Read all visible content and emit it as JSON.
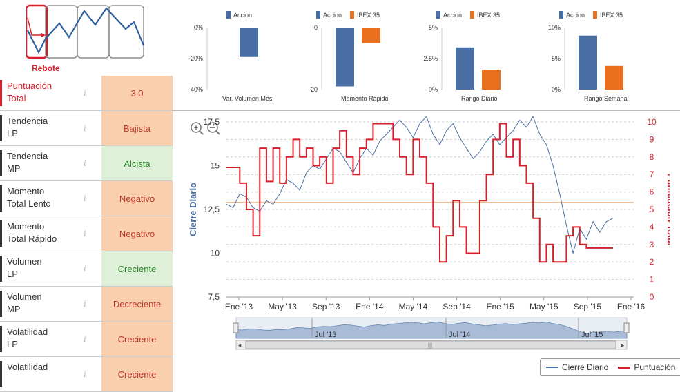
{
  "logo": {
    "label": "Rebote"
  },
  "mini_charts": [
    {
      "legend": [
        "Accion"
      ],
      "caption": "Var. Volumen Mes",
      "ticks": [
        "0%",
        "-20%",
        "-40%"
      ],
      "values": {
        "Accion": -0.19
      }
    },
    {
      "legend": [
        "Accion",
        "IBEX 35"
      ],
      "caption": "Momento Rápido",
      "ticks": [
        "0",
        "-20"
      ],
      "values": {
        "Accion": -19,
        "IBEX 35": -5
      }
    },
    {
      "legend": [
        "Accion",
        "IBEX 35"
      ],
      "caption": "Rango Diario",
      "ticks": [
        "5%",
        "2.5%",
        "0%"
      ],
      "values": {
        "Accion": 0.034,
        "IBEX 35": 0.016
      }
    },
    {
      "legend": [
        "Accion",
        "IBEX 35"
      ],
      "caption": "Rango Semanal",
      "ticks": [
        "10%",
        "5%",
        "0%"
      ],
      "values": {
        "Accion": 0.087,
        "IBEX 35": 0.038
      }
    }
  ],
  "colors": {
    "accion": "#4a6fa5",
    "ibex": "#e8701e",
    "punt": "#d61f2a",
    "cierre": "#4a6fa5"
  },
  "indicators": [
    {
      "label1": "Puntuación",
      "label2": "Total",
      "value": "3,0",
      "tone": "neg"
    },
    {
      "label1": "Tendencia",
      "label2": "LP",
      "value": "Bajista",
      "tone": "neg"
    },
    {
      "label1": "Tendencia",
      "label2": "MP",
      "value": "Alcista",
      "tone": "pos"
    },
    {
      "label1": "Momento",
      "label2": "Total Lento",
      "value": "Negativo",
      "tone": "neg"
    },
    {
      "label1": "Momento",
      "label2": "Total Rápido",
      "value": "Negativo",
      "tone": "neg"
    },
    {
      "label1": "Volumen",
      "label2": "LP",
      "value": "Creciente",
      "tone": "pos"
    },
    {
      "label1": "Volumen",
      "label2": "MP",
      "value": "Decreciente",
      "tone": "neg"
    },
    {
      "label1": "Volatilidad",
      "label2": "LP",
      "value": "Creciente",
      "tone": "neg"
    },
    {
      "label1": "Volatilidad",
      "label2": "",
      "value": "Creciente",
      "tone": "neg"
    }
  ],
  "chart_data": {
    "type": "line",
    "y_left_label": "Cierre Diario",
    "y_right_label": "Puntuacion Total",
    "y_left_ticks": [
      "17,5",
      "15",
      "12,5",
      "10",
      "7,5"
    ],
    "y_left_range": [
      7.5,
      17.5
    ],
    "y_right_ticks": [
      "10",
      "9",
      "8",
      "7",
      "6",
      "5",
      "4",
      "3",
      "2",
      "1",
      "0"
    ],
    "y_right_range": [
      0,
      10
    ],
    "x_ticks": [
      "Ene '13",
      "May '13",
      "Sep '13",
      "Ene '14",
      "May '14",
      "Sep '14",
      "Ene '15",
      "May '15",
      "Sep '15",
      "Ene '16"
    ],
    "navigator_ticks": [
      "Jul '13",
      "Jul '14",
      "Jul '15"
    ],
    "reference_level": 12.9,
    "series": [
      {
        "name": "Cierre Diario",
        "values": [
          12.8,
          12.6,
          13.4,
          13.2,
          12.6,
          12.4,
          13.0,
          12.8,
          13.4,
          14.2,
          14.0,
          13.6,
          14.6,
          15.0,
          14.8,
          15.4,
          16.0,
          15.8,
          15.2,
          14.6,
          15.4,
          16.0,
          15.6,
          16.4,
          16.8,
          17.2,
          17.6,
          17.2,
          16.6,
          17.4,
          17.8,
          16.8,
          16.2,
          17.0,
          17.4,
          16.6,
          16.0,
          15.4,
          15.8,
          16.4,
          16.8,
          16.2,
          16.6,
          17.0,
          17.6,
          17.2,
          17.8,
          16.8,
          16.2,
          15.0,
          13.4,
          11.6,
          10.0,
          11.4,
          10.8,
          11.8,
          11.2,
          11.8,
          12.0
        ]
      },
      {
        "name": "Puntuación",
        "values": [
          7.4,
          7.4,
          6.5,
          5.0,
          3.5,
          8.5,
          6.6,
          8.5,
          6.5,
          8.0,
          9.0,
          8.0,
          8.5,
          7.5,
          8.0,
          6.5,
          8.5,
          9.5,
          8.0,
          7.0,
          8.5,
          9.0,
          9.9,
          9.9,
          9.9,
          9.0,
          8.0,
          7.0,
          9.0,
          8.0,
          6.5,
          4.0,
          2.0,
          3.5,
          5.5,
          4.0,
          2.5,
          2.5,
          5.5,
          7.0,
          9.0,
          9.9,
          8.0,
          9.0,
          7.5,
          6.5,
          4.5,
          2.0,
          3.0,
          2.0,
          2.0,
          3.5,
          4.0,
          3.0,
          2.8,
          2.8,
          2.8,
          2.8,
          2.8
        ]
      }
    ]
  },
  "legend": {
    "cierre": "Cierre Diario",
    "punt": "Puntuación"
  }
}
